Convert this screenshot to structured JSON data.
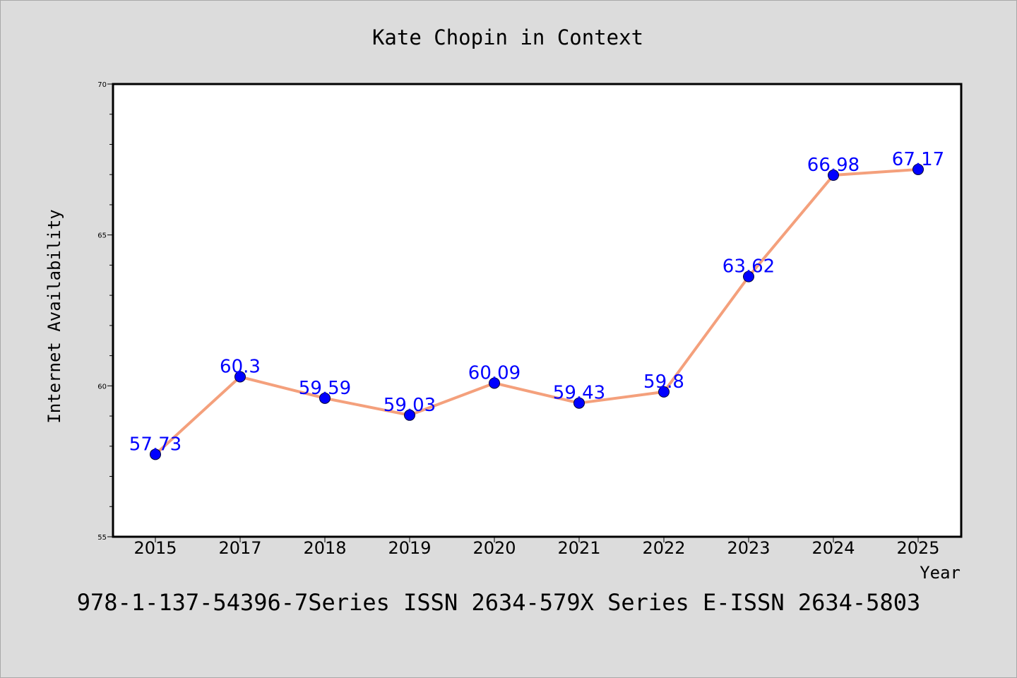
{
  "chart_data": {
    "type": "line",
    "title": "Kate Chopin in Context",
    "xlabel": "Year",
    "ylabel": "Internet Availability",
    "categories": [
      "2015",
      "2017",
      "2018",
      "2019",
      "2020",
      "2021",
      "2022",
      "2023",
      "2024",
      "2025"
    ],
    "series": [
      {
        "values": [
          57.73,
          60.3,
          59.59,
          59.03,
          60.09,
          59.43,
          59.8,
          63.62,
          66.98,
          67.17
        ],
        "data_labels": [
          "57.73",
          "60.3",
          "59.59",
          "59.03",
          "60.09",
          "59.43",
          "59.8",
          "63.62",
          "66.98",
          "67.17"
        ]
      }
    ],
    "ylim": [
      55,
      70
    ],
    "yticks": [
      "55",
      "60",
      "65",
      "70"
    ],
    "grid": false,
    "line_color": "#f4a07c",
    "marker_color": "#0000ff",
    "label_color": "#0000ff"
  },
  "footer": {
    "text": "978-1-137-54396-7Series ISSN 2634-579X Series E-ISSN 2634-5803"
  }
}
